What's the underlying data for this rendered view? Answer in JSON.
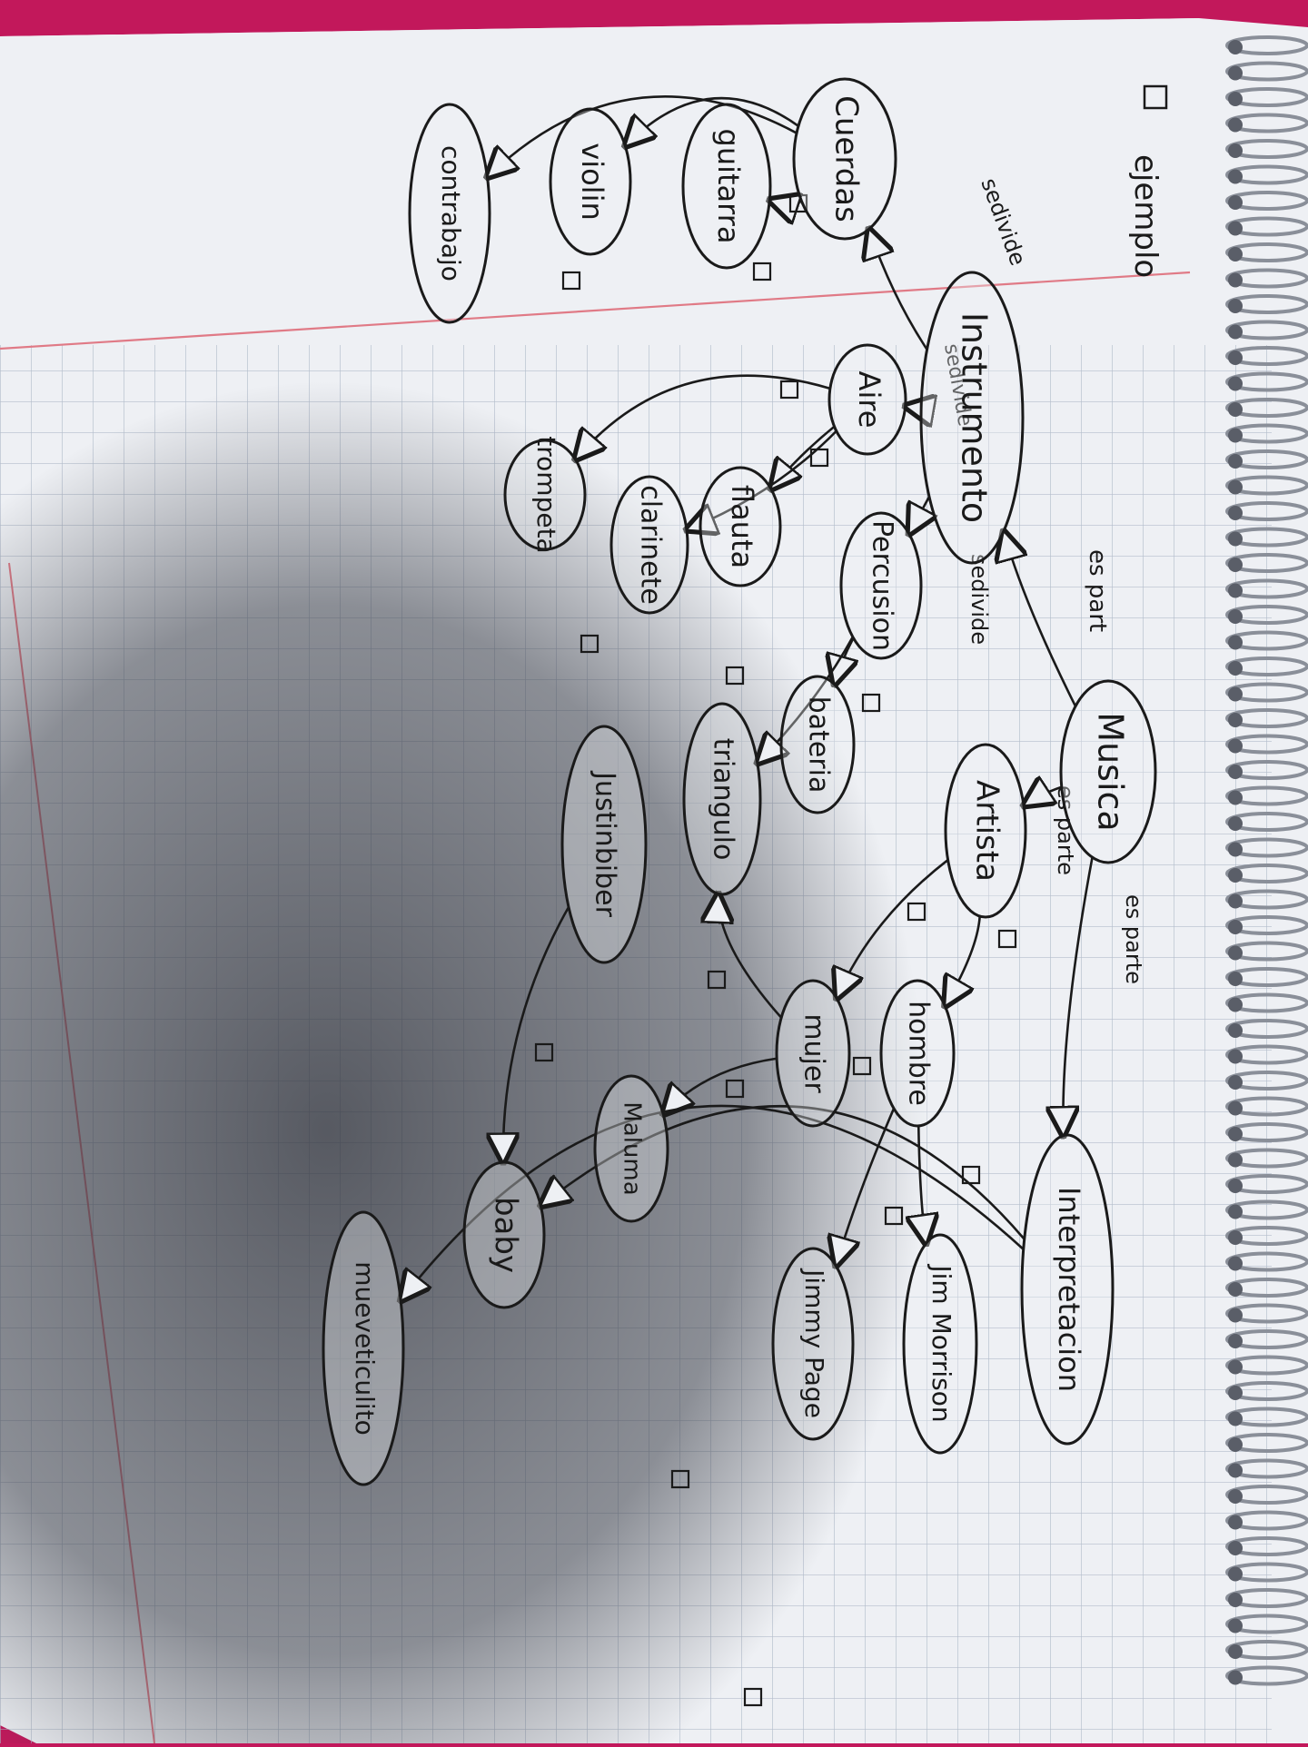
{
  "legend_label": "ejemplo",
  "nodes": [
    {
      "id": "musica",
      "label": "Musica"
    },
    {
      "id": "instrumento",
      "label": "Instrumento"
    },
    {
      "id": "cuerdas",
      "label": "Cuerdas"
    },
    {
      "id": "aire",
      "label": "Aire"
    },
    {
      "id": "percusion",
      "label": "Percusion"
    },
    {
      "id": "guitarra",
      "label": "guitarra"
    },
    {
      "id": "violin",
      "label": "violin"
    },
    {
      "id": "contrabajo",
      "label": "contrabajo"
    },
    {
      "id": "flauta",
      "label": "flauta"
    },
    {
      "id": "clarinete",
      "label": "clarinete"
    },
    {
      "id": "trompeta",
      "label": "trompeta"
    },
    {
      "id": "bateria",
      "label": "bateria"
    },
    {
      "id": "triangulo",
      "label": "triangulo"
    },
    {
      "id": "artista",
      "label": "Artista"
    },
    {
      "id": "hombre",
      "label": "hombre"
    },
    {
      "id": "mujer",
      "label": "mujer"
    },
    {
      "id": "interpretacion",
      "label": "Interpretacion"
    },
    {
      "id": "jim_morrison",
      "label": "Jim Morrison"
    },
    {
      "id": "jimmy_page",
      "label": "Jimmy Page"
    },
    {
      "id": "justin_bieber",
      "label": "Justinbiber"
    },
    {
      "id": "maluma",
      "label": "Maluma"
    },
    {
      "id": "baby",
      "label": "baby"
    },
    {
      "id": "mueve_tu_culito",
      "label": "mueveticulito"
    }
  ],
  "edge_labels": [
    {
      "id": "lbl_espart_1",
      "label": "es part"
    },
    {
      "id": "lbl_espart_2",
      "label": "es parte"
    },
    {
      "id": "lbl_espart_3",
      "label": "es parte"
    },
    {
      "id": "lbl_sedivide_1",
      "label": "sedivide"
    },
    {
      "id": "lbl_sedivide_2",
      "label": "sedivide"
    },
    {
      "id": "lbl_sedivide_3",
      "label": "sedivide"
    }
  ],
  "colors": {
    "ink": "#1a1a1a",
    "paper": "#eef0f4",
    "grid": "#aeb8c8",
    "margin": "#e07a86",
    "background": "#c2185b",
    "shadow": "#4a4e5a"
  }
}
